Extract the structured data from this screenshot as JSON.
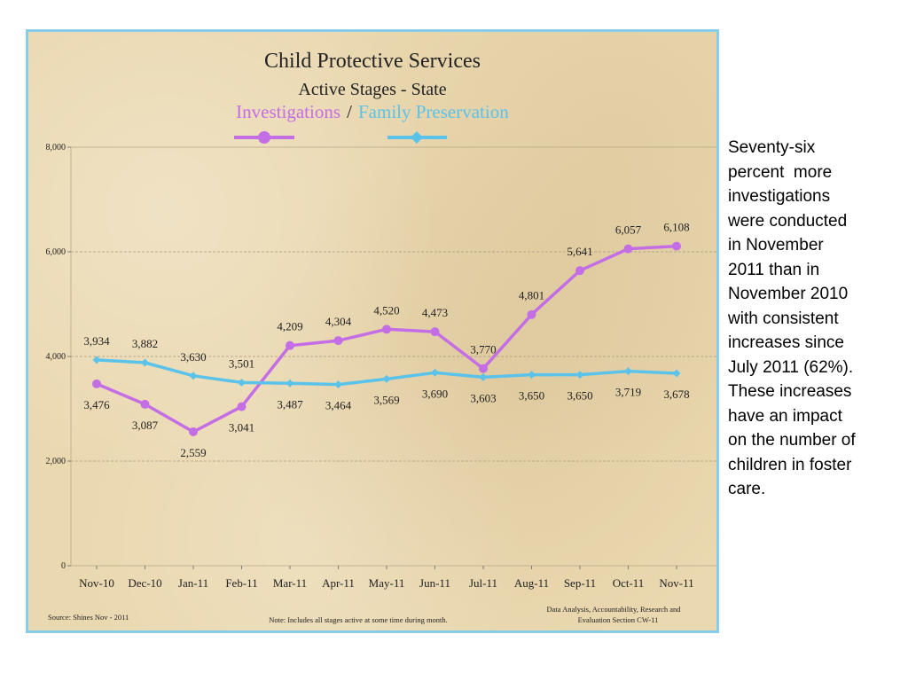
{
  "side_note": "Seventy-six\npercent  more\ninvestigations\nwere conducted\nin November\n2011 than in\nNovember 2010\nwith consistent\nincreases since\nJuly 2011 (62%).\nThese increases\nhave an impact\non the number of\nchildren in foster\ncare.",
  "colors": {
    "panel_border": "#87cde9",
    "panel_background": "#ead8b0",
    "investigations": "#c46ee6",
    "family_preservation": "#5bc3ea"
  },
  "chart_data": {
    "type": "line",
    "title": "Child Protective Services",
    "subtitle": "Active Stages  -  State",
    "legend_position": "top-center",
    "grid": "horizontal dashed",
    "categories": [
      "Nov-10",
      "Dec-10",
      "Jan-11",
      "Feb-11",
      "Mar-11",
      "Apr-11",
      "May-11",
      "Jun-11",
      "Jul-11",
      "Aug-11",
      "Sep-11",
      "Oct-11",
      "Nov-11"
    ],
    "ylim": [
      0,
      8000
    ],
    "yticks": [
      "0",
      "2,000",
      "4,000",
      "6,000",
      "8,000"
    ],
    "series": [
      {
        "name": "Investigations",
        "color": "#c46ee6",
        "marker": "circle",
        "values": [
          3476,
          3087,
          2559,
          3041,
          4209,
          4304,
          4520,
          4473,
          3770,
          4801,
          5641,
          6057,
          6108
        ],
        "labels": [
          "3,476",
          "3,087",
          "2,559",
          "3,041",
          "4,209",
          "4,304",
          "4,520",
          "4,473",
          "3,770",
          "4,801",
          "5,641",
          "6,057",
          "6,108"
        ]
      },
      {
        "name": "Family Preservation",
        "color": "#5bc3ea",
        "marker": "diamond",
        "values": [
          3934,
          3882,
          3630,
          3501,
          3487,
          3464,
          3569,
          3690,
          3603,
          3650,
          3650,
          3719,
          3678
        ],
        "labels": [
          "3,934",
          "3,882",
          "3,630",
          "3,501",
          "3,487",
          "3,464",
          "3,569",
          "3,690",
          "3,603",
          "3,650",
          "3,650",
          "3,719",
          "3,678"
        ]
      }
    ],
    "legend_separator": "/",
    "footer": {
      "source": "Source: Shines    Nov - 2011",
      "note": "Note:  Includes all stages active at  some time during month.",
      "credit_line1": "Data Analysis, Accountability, Research and",
      "credit_line2": "Evaluation Section    CW-11"
    }
  }
}
